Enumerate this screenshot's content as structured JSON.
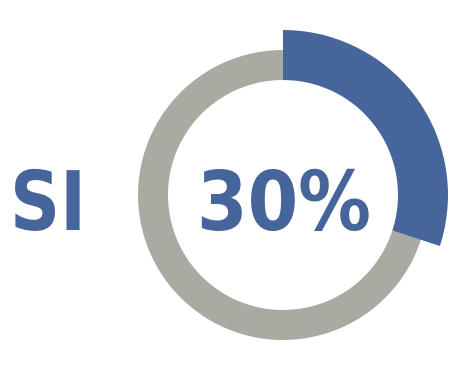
{
  "chart_data": {
    "type": "pie",
    "label": "SI",
    "value_text": "30%",
    "slices": [
      {
        "name": "SI",
        "value": 30,
        "color": "#46659a"
      },
      {
        "name": "",
        "value": 70,
        "color": "#abaaa2"
      }
    ]
  }
}
